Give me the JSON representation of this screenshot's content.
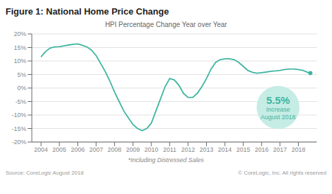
{
  "chart_data": {
    "type": "line",
    "title": "Figure 1: National Home Price Change",
    "subtitle": "HPI Percentage Change Year over Year",
    "note": "*Including Distressed Sales",
    "source_left": "Source: CoreLogic August 2018",
    "source_right": "© CoreLogic, Inc. All rights reserved",
    "color": "#3db5a0",
    "grid": "y",
    "annotation": {
      "lines": [
        "5.5%",
        "Increase",
        "August 2018"
      ],
      "color": "#c5ece5"
    },
    "xlim": [
      2003.5,
      2019.0
    ],
    "xticks": [
      2004,
      2005,
      2006,
      2007,
      2008,
      2009,
      2010,
      2011,
      2012,
      2013,
      2014,
      2015,
      2016,
      2017,
      2018
    ],
    "ylim": [
      -20,
      20
    ],
    "yticks": [
      {
        "value": -20,
        "label": "-20%"
      },
      {
        "value": -15,
        "label": "-15%"
      },
      {
        "value": -10,
        "label": "-10%"
      },
      {
        "value": -5,
        "label": "-5%"
      },
      {
        "value": 0,
        "label": "0%"
      },
      {
        "value": 5,
        "label": "5%"
      },
      {
        "value": 10,
        "label": "10%"
      },
      {
        "value": 15,
        "label": "15%"
      },
      {
        "value": 20,
        "label": "20%"
      }
    ],
    "x": [
      2004.0,
      2004.25,
      2004.5,
      2004.75,
      2005.0,
      2005.25,
      2005.5,
      2005.75,
      2006.0,
      2006.25,
      2006.5,
      2006.75,
      2007.0,
      2007.25,
      2007.5,
      2007.75,
      2008.0,
      2008.25,
      2008.5,
      2008.75,
      2009.0,
      2009.25,
      2009.5,
      2009.75,
      2010.0,
      2010.25,
      2010.5,
      2010.75,
      2011.0,
      2011.25,
      2011.5,
      2011.75,
      2012.0,
      2012.25,
      2012.5,
      2012.75,
      2013.0,
      2013.25,
      2013.5,
      2013.75,
      2014.0,
      2014.25,
      2014.5,
      2014.75,
      2015.0,
      2015.25,
      2015.5,
      2015.75,
      2016.0,
      2016.25,
      2016.5,
      2016.75,
      2017.0,
      2017.25,
      2017.5,
      2017.75,
      2018.0,
      2018.25,
      2018.5,
      2018.65
    ],
    "values": [
      11.5,
      13.5,
      14.8,
      15.2,
      15.3,
      15.6,
      15.9,
      16.2,
      16.3,
      15.8,
      15.2,
      14.0,
      12.0,
      9.0,
      6.0,
      2.5,
      -1.5,
      -5.0,
      -8.5,
      -11.0,
      -13.5,
      -15.0,
      -15.8,
      -15.0,
      -13.0,
      -8.5,
      -4.0,
      0.5,
      3.5,
      3.0,
      1.0,
      -2.0,
      -3.5,
      -3.5,
      -2.0,
      0.5,
      3.5,
      7.0,
      9.5,
      10.5,
      10.8,
      10.8,
      10.5,
      9.5,
      8.0,
      6.5,
      5.8,
      5.5,
      5.7,
      5.9,
      6.2,
      6.3,
      6.5,
      6.8,
      7.0,
      7.0,
      6.8,
      6.5,
      5.8,
      5.5
    ]
  }
}
